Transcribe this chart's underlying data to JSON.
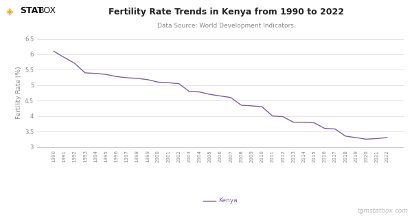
{
  "title": "Fertility Rate Trends in Kenya from 1990 to 2022",
  "subtitle": "Data Source: World Development Indicators.",
  "ylabel": "Fertility Rate (%)",
  "watermark": "tgmstatbox.com",
  "legend_label": "Kenya",
  "line_color": "#7B5EA7",
  "background_color": "#ffffff",
  "grid_color": "#e0e0e0",
  "years": [
    1990,
    1991,
    1992,
    1993,
    1994,
    1995,
    1996,
    1997,
    1998,
    1999,
    2000,
    2001,
    2002,
    2003,
    2004,
    2005,
    2006,
    2007,
    2008,
    2009,
    2010,
    2011,
    2012,
    2013,
    2014,
    2015,
    2016,
    2017,
    2018,
    2019,
    2020,
    2021,
    2022
  ],
  "values": [
    6.1,
    5.9,
    5.71,
    5.4,
    5.38,
    5.35,
    5.28,
    5.24,
    5.22,
    5.18,
    5.1,
    5.08,
    5.05,
    4.8,
    4.78,
    4.7,
    4.65,
    4.6,
    4.35,
    4.33,
    4.3,
    4.0,
    3.98,
    3.8,
    3.8,
    3.78,
    3.6,
    3.58,
    3.35,
    3.3,
    3.25,
    3.27,
    3.3
  ],
  "ylim": [
    3.0,
    6.5
  ],
  "yticks": [
    3.0,
    3.5,
    4.0,
    4.5,
    5.0,
    5.5,
    6.0,
    6.5
  ],
  "ytick_labels": [
    "3",
    "3.5",
    "4",
    "4.5",
    "5",
    "5.5",
    "6",
    "6.5"
  ]
}
